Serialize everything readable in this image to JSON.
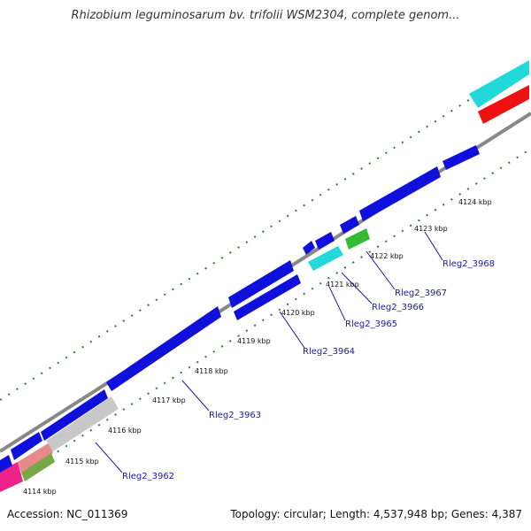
{
  "title": "Rhizobium leguminosarum bv. trifolii WSM2304, complete genom...",
  "footer": {
    "accession": "Accession: NC_011369",
    "summary": "Topology: circular; Length: 4,537,948 bp; Genes: 4,387"
  },
  "colors": {
    "backbone": "#888888",
    "tick": "#2a7f2a",
    "gene_blue": "#1010dd",
    "cyan": "#22d8d8",
    "red": "#ee1111",
    "green": "#33bb33",
    "grey": "#c8c8c8",
    "pink": "#ee2288",
    "label": "#1a1aa8"
  },
  "ruler_labels": [
    "4114 kbp",
    "4115 kbp",
    "4116 kbp",
    "4117 kbp",
    "4118 kbp",
    "4119 kbp",
    "4120 kbp",
    "4121 kbp",
    "4122 kbp",
    "4123 kbp",
    "4124 kbp"
  ],
  "gene_labels": [
    "Rleg2_3962",
    "Rleg2_3963",
    "Rleg2_3964",
    "Rleg2_3965",
    "Rleg2_3966",
    "Rleg2_3967",
    "Rleg2_3968"
  ]
}
